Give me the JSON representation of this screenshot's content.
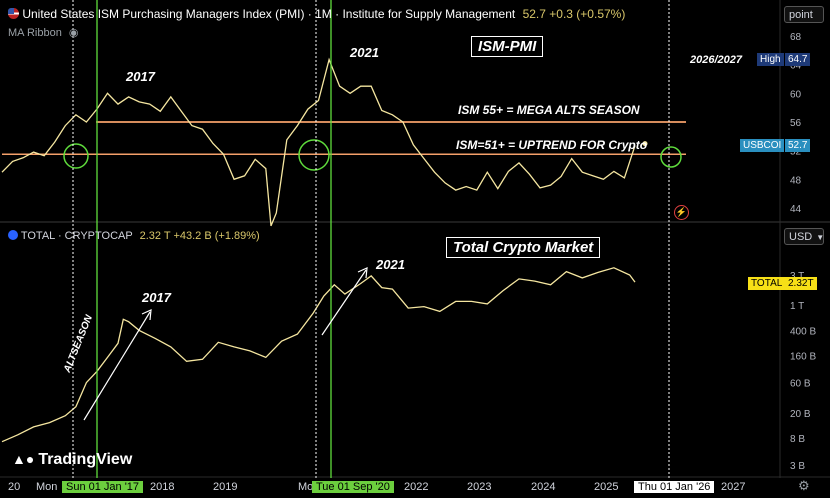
{
  "pmi_header": {
    "title": "United States ISM Purchasing Managers Index (PMI) · 1M · Institute for Supply Management",
    "value": "52.7",
    "change": "+0.3 (+0.57%)",
    "indicator": "MA Ribbon"
  },
  "crypto_header": {
    "title": "TOTAL · CRYPTOCAP",
    "value": "2.32 T",
    "change": "+43.2 B (+1.89%)"
  },
  "annotations": {
    "ism_box": "ISM-PMI",
    "total_box": "Total Crypto Market",
    "line55": "ISM 55+ = MEGA ALTS SEASON",
    "line51": "ISM=51+ = UPTREND FOR Crypto",
    "y2017_top": "2017",
    "y2021_top": "2021",
    "y2026": "2026/2027",
    "y2017_bot": "2017",
    "y2021_bot": "2021",
    "altseason": "ALTSEASON"
  },
  "axis_right": {
    "scale_top": "point",
    "scale_bottom": "USD",
    "pmi_ticks": [
      "68",
      "64",
      "60",
      "56",
      "52",
      "48",
      "44"
    ],
    "crypto_ticks": [
      "3 T",
      "1 T",
      "400 B",
      "160 B",
      "60 B",
      "20 B",
      "8 B",
      "3 B"
    ],
    "high_label": "High",
    "high_value": "64.7",
    "symbol_label": "USBCOI",
    "symbol_value": "52.7",
    "total_label": "TOTAL",
    "total_value": "2.32T"
  },
  "axis_x": {
    "labels": [
      "2018",
      "2019",
      "2022",
      "2023",
      "2024",
      "2025",
      "2027"
    ],
    "cursor_a": "Sun 01 Jan '17",
    "cursor_b": "Tue 01 Sep '20",
    "cursor_c": "Thu 01 Jan '26",
    "partial_left": "Mon",
    "partial_mid": "Mo",
    "partial_edge": "20"
  },
  "brand": "TradingView",
  "colors": {
    "line": "#f5e6a0",
    "orange": "#f5a06a",
    "green": "#5fdc3c",
    "badge_blue": "#1e3a78",
    "badge_cyan": "#2a8fbf",
    "badge_yellow": "#f7e017"
  },
  "chart_data": [
    {
      "type": "line",
      "title": "United States ISM Purchasing Managers Index (PMI)",
      "x_range": [
        "2016-01",
        "2027-06"
      ],
      "ylim": [
        43,
        69
      ],
      "hlines": [
        {
          "y": 56,
          "label": "ISM 55+ = MEGA ALTS SEASON"
        },
        {
          "y": 51.5,
          "label": "ISM=51+ = UPTREND FOR Crypto"
        }
      ],
      "series": [
        {
          "x": [
            "2016-01",
            "2016-03",
            "2016-05",
            "2016-07",
            "2016-09",
            "2016-11",
            "2017-01",
            "2017-03",
            "2017-05",
            "2017-07",
            "2017-09",
            "2017-11",
            "2018-01",
            "2018-03",
            "2018-05",
            "2018-07",
            "2018-09",
            "2018-11",
            "2019-01",
            "2019-03",
            "2019-05",
            "2019-07",
            "2019-09",
            "2019-11",
            "2020-01",
            "2020-03",
            "2020-04",
            "2020-05",
            "2020-07",
            "2020-09",
            "2020-11",
            "2021-01",
            "2021-03",
            "2021-05",
            "2021-07",
            "2021-09",
            "2021-11",
            "2022-01",
            "2022-03",
            "2022-05",
            "2022-07",
            "2022-09",
            "2022-11",
            "2023-01",
            "2023-03",
            "2023-05",
            "2023-07",
            "2023-09",
            "2023-11",
            "2024-01",
            "2024-03",
            "2024-05",
            "2024-07",
            "2024-09",
            "2024-11",
            "2025-01",
            "2025-03",
            "2025-05",
            "2025-07",
            "2025-09",
            "2025-11",
            "2026-01"
          ],
          "values": [
            49.0,
            50.5,
            51.0,
            51.8,
            51.3,
            53.2,
            55.5,
            57.0,
            56.0,
            57.8,
            60.0,
            58.5,
            59.5,
            58.8,
            58.5,
            57.5,
            59.5,
            57.5,
            55.5,
            55.0,
            53.0,
            51.5,
            48.0,
            48.5,
            50.8,
            49.5,
            41.5,
            43.3,
            53.5,
            55.5,
            57.8,
            59.0,
            64.7,
            61.0,
            60.0,
            61.0,
            61.0,
            57.6,
            57.0,
            56.0,
            52.8,
            50.9,
            49.0,
            47.5,
            46.5,
            47.0,
            46.5,
            49.0,
            46.7,
            49.1,
            50.3,
            48.7,
            46.8,
            47.2,
            48.4,
            50.9,
            49.0,
            48.5,
            48.0,
            49.1,
            48.2,
            52.7
          ]
        }
      ]
    },
    {
      "type": "line",
      "title": "TOTAL · CRYPTOCAP",
      "yscale": "log",
      "x_range": [
        "2016-01",
        "2027-06"
      ],
      "ylim_usd": [
        2500000000.0,
        6000000000000.0
      ],
      "series": [
        {
          "x": [
            "2016-01",
            "2016-04",
            "2016-07",
            "2016-10",
            "2017-01",
            "2017-03",
            "2017-05",
            "2017-07",
            "2017-09",
            "2017-11",
            "2017-12",
            "2018-01",
            "2018-03",
            "2018-06",
            "2018-09",
            "2018-12",
            "2019-03",
            "2019-06",
            "2019-09",
            "2019-12",
            "2020-03",
            "2020-06",
            "2020-09",
            "2020-12",
            "2021-02",
            "2021-04",
            "2021-06",
            "2021-09",
            "2021-11",
            "2022-01",
            "2022-03",
            "2022-06",
            "2022-09",
            "2022-12",
            "2023-03",
            "2023-06",
            "2023-09",
            "2023-12",
            "2024-03",
            "2024-06",
            "2024-09",
            "2024-12",
            "2025-03",
            "2025-06",
            "2025-09",
            "2025-12",
            "2026-01"
          ],
          "values": [
            7000000000.0,
            9000000000.0,
            12000000000.0,
            14000000000.0,
            18000000000.0,
            25000000000.0,
            60000000000.0,
            90000000000.0,
            150000000000.0,
            250000000000.0,
            600000000000.0,
            550000000000.0,
            400000000000.0,
            300000000000.0,
            220000000000.0,
            130000000000.0,
            140000000000.0,
            260000000000.0,
            220000000000.0,
            190000000000.0,
            150000000000.0,
            270000000000.0,
            350000000000.0,
            750000000000.0,
            1400000000000.0,
            2100000000000.0,
            1500000000000.0,
            2200000000000.0,
            2900000000000.0,
            1900000000000.0,
            1800000000000.0,
            900000000000.0,
            950000000000.0,
            800000000000.0,
            1150000000000.0,
            1150000000000.0,
            1050000000000.0,
            1700000000000.0,
            2600000000000.0,
            2400000000000.0,
            2100000000000.0,
            3400000000000.0,
            2700000000000.0,
            3300000000000.0,
            3900000000000.0,
            3000000000000.0,
            2320000000000.0
          ]
        }
      ]
    }
  ]
}
